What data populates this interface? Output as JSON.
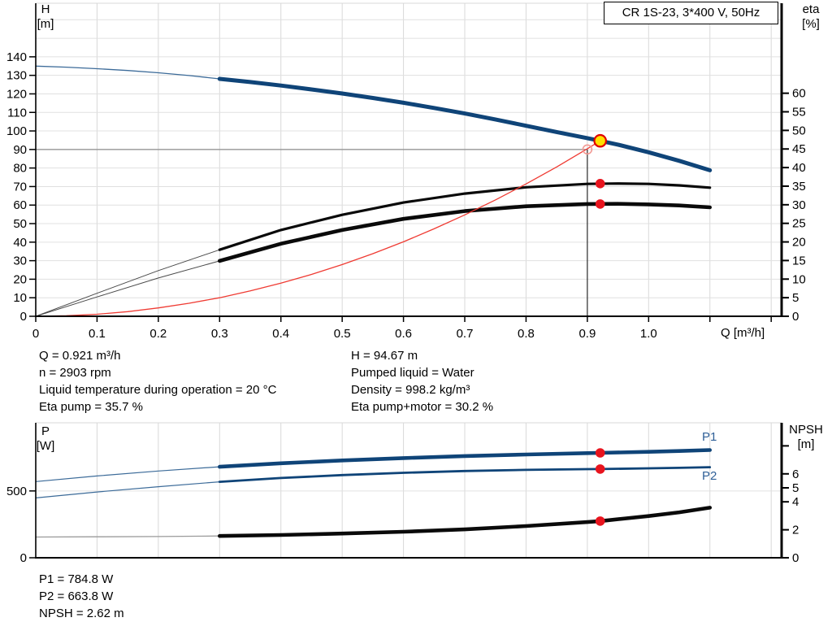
{
  "title_box": {
    "label": "CR 1S-23, 3*400 V, 50Hz"
  },
  "colors": {
    "curve_blue": "#0f4478",
    "curve_blue_thin": "#3c6b99",
    "curve_black": "#0a0a0a",
    "curve_black_thin": "#4a4a4a",
    "curve_gray_thin": "#9a9a9a",
    "system_red": "#ef3b33",
    "marker_red": "#e8141e",
    "duty_yellow": "#ffe000",
    "duty_ring": "#e00000",
    "requested_ring": "#f29a94",
    "grid_v": "#d8d8d8",
    "grid_h": "#e0e0e0",
    "crosshair_v": "#2a2a2a",
    "crosshair_h": "#8c8c8c",
    "axis": "#000000",
    "series_label_blue": "#2e5f97"
  },
  "chart_data": [
    {
      "type": "line",
      "id": "qh-eta-chart",
      "title": "CR 1S-23, 3*400 V, 50Hz",
      "xlabel": "Q [m³/h]",
      "ylabel_left": [
        "H",
        "[m]"
      ],
      "ylabel_right": [
        "eta",
        "[%]"
      ],
      "x_range": [
        0,
        1.217
      ],
      "y_left_range": [
        0,
        168.9
      ],
      "y_right_range": [
        0,
        84.2
      ],
      "x_ticks": [
        {
          "q": 0,
          "label": "0"
        },
        {
          "q": 0.1,
          "label": "0.1"
        },
        {
          "q": 0.2,
          "label": "0.2"
        },
        {
          "q": 0.3,
          "label": "0.3"
        },
        {
          "q": 0.4,
          "label": "0.4"
        },
        {
          "q": 0.5,
          "label": "0.5"
        },
        {
          "q": 0.6,
          "label": "0.6"
        },
        {
          "q": 0.7,
          "label": "0.7"
        },
        {
          "q": 0.8,
          "label": "0.8"
        },
        {
          "q": 0.9,
          "label": "0.9"
        },
        {
          "q": 1.0,
          "label": "1.0"
        },
        {
          "q": 1.1,
          "label": ""
        },
        {
          "q": 1.2,
          "label": ""
        }
      ],
      "y_left_ticks": [
        {
          "v": 0,
          "label": "0"
        },
        {
          "v": 10,
          "label": "10"
        },
        {
          "v": 20,
          "label": "20"
        },
        {
          "v": 30,
          "label": "30"
        },
        {
          "v": 40,
          "label": "40"
        },
        {
          "v": 50,
          "label": "50"
        },
        {
          "v": 60,
          "label": "60"
        },
        {
          "v": 70,
          "label": "70"
        },
        {
          "v": 80,
          "label": "80"
        },
        {
          "v": 90,
          "label": "90"
        },
        {
          "v": 100,
          "label": "100"
        },
        {
          "v": 110,
          "label": "110"
        },
        {
          "v": 120,
          "label": "120"
        },
        {
          "v": 130,
          "label": "130"
        },
        {
          "v": 140,
          "label": "140"
        }
      ],
      "y_right_ticks": [
        {
          "v": 0,
          "label": "0"
        },
        {
          "v": 5,
          "label": "5"
        },
        {
          "v": 10,
          "label": "10"
        },
        {
          "v": 15,
          "label": "15"
        },
        {
          "v": 20,
          "label": "20"
        },
        {
          "v": 25,
          "label": "25"
        },
        {
          "v": 30,
          "label": "30"
        },
        {
          "v": 35,
          "label": "35"
        },
        {
          "v": 40,
          "label": "40"
        },
        {
          "v": 45,
          "label": "45"
        },
        {
          "v": 50,
          "label": "50"
        },
        {
          "v": 55,
          "label": "55"
        },
        {
          "v": 60,
          "label": "60"
        }
      ],
      "grid_x": [
        0.1,
        0.2,
        0.3,
        0.4,
        0.5,
        0.6,
        0.7,
        0.8,
        0.9,
        1.0,
        1.1,
        1.2
      ],
      "grid_left": [
        10,
        20,
        30,
        40,
        50,
        60,
        70,
        80,
        90,
        100,
        110,
        120,
        130,
        140,
        150,
        160
      ],
      "crosshair": {
        "q": 0.9,
        "v": 90,
        "axis": "left"
      },
      "series": [
        {
          "name": "head-curve",
          "axis": "left",
          "split": 0.3,
          "color": "#0f4478",
          "color_thin": "#3c6b99",
          "w_thin": 1.3,
          "w_thick": 5,
          "points": [
            [
              0,
              135
            ],
            [
              0.05,
              134.4
            ],
            [
              0.1,
              133.6
            ],
            [
              0.15,
              132.6
            ],
            [
              0.2,
              131.4
            ],
            [
              0.25,
              129.9
            ],
            [
              0.3,
              128.1
            ],
            [
              0.35,
              126.4
            ],
            [
              0.4,
              124.5
            ],
            [
              0.45,
              122.4
            ],
            [
              0.5,
              120.2
            ],
            [
              0.55,
              117.8
            ],
            [
              0.6,
              115.2
            ],
            [
              0.65,
              112.4
            ],
            [
              0.7,
              109.4
            ],
            [
              0.75,
              106.2
            ],
            [
              0.8,
              102.8
            ],
            [
              0.85,
              99.4
            ],
            [
              0.9,
              96.1
            ],
            [
              0.921,
              94.67
            ],
            [
              0.95,
              92.6
            ],
            [
              1.0,
              88.5
            ],
            [
              1.05,
              83.9
            ],
            [
              1.1,
              78.8
            ]
          ]
        },
        {
          "name": "eta-pump-curve",
          "axis": "right",
          "split": 0.3,
          "color": "#0a0a0a",
          "color_thin": "#4a4a4a",
          "w_thin": 1,
          "w_thick": 3.2,
          "points": [
            [
              0,
              0
            ],
            [
              0.1,
              6.2
            ],
            [
              0.2,
              12.3
            ],
            [
              0.3,
              17.9
            ],
            [
              0.4,
              23.2
            ],
            [
              0.5,
              27.3
            ],
            [
              0.6,
              30.6
            ],
            [
              0.7,
              33
            ],
            [
              0.8,
              34.7
            ],
            [
              0.9,
              35.6
            ],
            [
              0.95,
              35.72
            ],
            [
              1.0,
              35.6
            ],
            [
              1.05,
              35.2
            ],
            [
              1.1,
              34.6
            ]
          ]
        },
        {
          "name": "eta-pump-motor-curve",
          "axis": "right",
          "split": 0.3,
          "color": "#0a0a0a",
          "color_thin": "#4a4a4a",
          "w_thin": 1,
          "w_thick": 4.6,
          "points": [
            [
              0,
              0
            ],
            [
              0.1,
              5.2
            ],
            [
              0.2,
              10.3
            ],
            [
              0.3,
              14.9
            ],
            [
              0.4,
              19.5
            ],
            [
              0.5,
              23.2
            ],
            [
              0.6,
              26.2
            ],
            [
              0.7,
              28.3
            ],
            [
              0.8,
              29.6
            ],
            [
              0.9,
              30.2
            ],
            [
              0.95,
              30.25
            ],
            [
              1.0,
              30.1
            ],
            [
              1.05,
              29.8
            ],
            [
              1.1,
              29.3
            ]
          ]
        },
        {
          "name": "system-curve",
          "axis": "left",
          "split": null,
          "color": "#ef3b33",
          "color_thin": "#ef3b33",
          "w_thin": 1.3,
          "w_thick": 1.3,
          "points": [
            [
              0,
              0
            ],
            [
              0.05,
              0.3
            ],
            [
              0.1,
              1.1
            ],
            [
              0.15,
              2.5
            ],
            [
              0.2,
              4.5
            ],
            [
              0.25,
              7
            ],
            [
              0.3,
              10
            ],
            [
              0.35,
              13.7
            ],
            [
              0.4,
              17.9
            ],
            [
              0.45,
              22.6
            ],
            [
              0.5,
              27.9
            ],
            [
              0.55,
              33.8
            ],
            [
              0.6,
              40.2
            ],
            [
              0.65,
              47.2
            ],
            [
              0.7,
              54.7
            ],
            [
              0.75,
              62.8
            ],
            [
              0.8,
              71.4
            ],
            [
              0.85,
              80.6
            ],
            [
              0.9,
              90.4
            ],
            [
              0.921,
              94.67
            ]
          ]
        }
      ],
      "markers": [
        {
          "kind": "requested-duty-point",
          "q": 0.9,
          "v": 90,
          "axis": "left",
          "r": 5.5,
          "fill": "none",
          "stroke": "#f29a94",
          "sw": 1.6
        },
        {
          "kind": "duty-point",
          "q": 0.921,
          "v": 94.67,
          "axis": "left",
          "r": 7.2,
          "fill": "#ffe000",
          "stroke": "#e00000",
          "sw": 2.2
        },
        {
          "kind": "eta-pump-dot",
          "q": 0.921,
          "v": 35.7,
          "axis": "right",
          "r": 5.8,
          "fill": "#e8141e",
          "stroke": "none",
          "sw": 0
        },
        {
          "kind": "eta-pump-motor-dot",
          "q": 0.921,
          "v": 30.2,
          "axis": "right",
          "r": 5.8,
          "fill": "#e8141e",
          "stroke": "none",
          "sw": 0
        }
      ]
    },
    {
      "type": "line",
      "id": "power-npsh-chart",
      "title": "",
      "xlabel": "",
      "ylabel_left": [
        "P",
        "[W]"
      ],
      "ylabel_right": [
        "NPSH",
        "[m]"
      ],
      "x_range": [
        0,
        1.217
      ],
      "y_left_range": [
        0,
        1010
      ],
      "y_right_range": [
        0,
        9.65
      ],
      "x_ticks": [],
      "y_left_ticks": [
        {
          "v": 0,
          "label": "0"
        },
        {
          "v": 500,
          "label": "500"
        }
      ],
      "y_right_ticks": [
        {
          "v": 0,
          "label": "0"
        },
        {
          "v": 2,
          "label": "2"
        },
        {
          "v": 4,
          "label": "4"
        },
        {
          "v": 5,
          "label": "5"
        },
        {
          "v": 6,
          "label": "6"
        },
        {
          "v": 8,
          "label": ""
        }
      ],
      "grid_x": [
        0.1,
        0.2,
        0.3,
        0.4,
        0.5,
        0.6,
        0.7,
        0.8,
        0.9,
        1.0,
        1.1,
        1.2
      ],
      "grid_left": [
        500
      ],
      "crosshair": null,
      "series": [
        {
          "name": "p1-curve",
          "axis": "left",
          "split": 0.3,
          "color": "#0f4478",
          "color_thin": "#3c6b99",
          "w_thin": 1.2,
          "w_thick": 4.6,
          "points": [
            [
              0,
              570
            ],
            [
              0.1,
              612
            ],
            [
              0.2,
              649
            ],
            [
              0.3,
              681
            ],
            [
              0.4,
              707
            ],
            [
              0.5,
              728
            ],
            [
              0.6,
              746
            ],
            [
              0.7,
              761
            ],
            [
              0.8,
              773
            ],
            [
              0.9,
              783
            ],
            [
              0.921,
              785
            ],
            [
              1.0,
              793
            ],
            [
              1.05,
              799
            ],
            [
              1.1,
              806
            ]
          ]
        },
        {
          "name": "p2-curve",
          "axis": "left",
          "split": 0.3,
          "color": "#0f4478",
          "color_thin": "#3c6b99",
          "w_thin": 1.2,
          "w_thick": 2.8,
          "points": [
            [
              0,
              448
            ],
            [
              0.1,
              492
            ],
            [
              0.2,
              532
            ],
            [
              0.3,
              568
            ],
            [
              0.4,
              597
            ],
            [
              0.5,
              619
            ],
            [
              0.6,
              636
            ],
            [
              0.7,
              649
            ],
            [
              0.8,
              658
            ],
            [
              0.9,
              663
            ],
            [
              0.921,
              664
            ],
            [
              1.0,
              669
            ],
            [
              1.05,
              673
            ],
            [
              1.1,
              678
            ]
          ]
        },
        {
          "name": "npsh-curve",
          "axis": "right",
          "split": 0.3,
          "color": "#0a0a0a",
          "color_thin": "#9a9a9a",
          "w_thin": 1.3,
          "w_thick": 4.6,
          "points": [
            [
              0,
              1.48
            ],
            [
              0.1,
              1.5
            ],
            [
              0.2,
              1.52
            ],
            [
              0.3,
              1.56
            ],
            [
              0.4,
              1.63
            ],
            [
              0.5,
              1.73
            ],
            [
              0.6,
              1.86
            ],
            [
              0.7,
              2.03
            ],
            [
              0.8,
              2.27
            ],
            [
              0.9,
              2.55
            ],
            [
              0.921,
              2.62
            ],
            [
              1.0,
              2.98
            ],
            [
              1.05,
              3.25
            ],
            [
              1.1,
              3.58
            ]
          ]
        }
      ],
      "markers": [
        {
          "kind": "p1-dot",
          "q": 0.921,
          "v": 784.8,
          "axis": "left",
          "r": 5.8,
          "fill": "#e8141e",
          "stroke": "none",
          "sw": 0
        },
        {
          "kind": "p2-dot",
          "q": 0.921,
          "v": 663.8,
          "axis": "left",
          "r": 5.8,
          "fill": "#e8141e",
          "stroke": "none",
          "sw": 0
        },
        {
          "kind": "npsh-dot",
          "q": 0.921,
          "v": 2.62,
          "axis": "right",
          "r": 5.8,
          "fill": "#e8141e",
          "stroke": "none",
          "sw": 0
        }
      ],
      "series_labels": [
        {
          "text": "P1"
        },
        {
          "text": "P2"
        }
      ]
    }
  ],
  "info_top": {
    "left": [
      "Q = 0.921 m³/h",
      "n = 2903 rpm",
      "Liquid temperature during operation = 20 °C",
      "Eta pump = 35.7 %"
    ],
    "right": [
      "H = 94.67 m",
      "Pumped liquid = Water",
      "Density = 998.2 kg/m³",
      "Eta pump+motor = 30.2 %"
    ]
  },
  "info_bottom": [
    "P1 = 784.8 W",
    "P2 = 663.8 W",
    "NPSH = 2.62 m"
  ]
}
